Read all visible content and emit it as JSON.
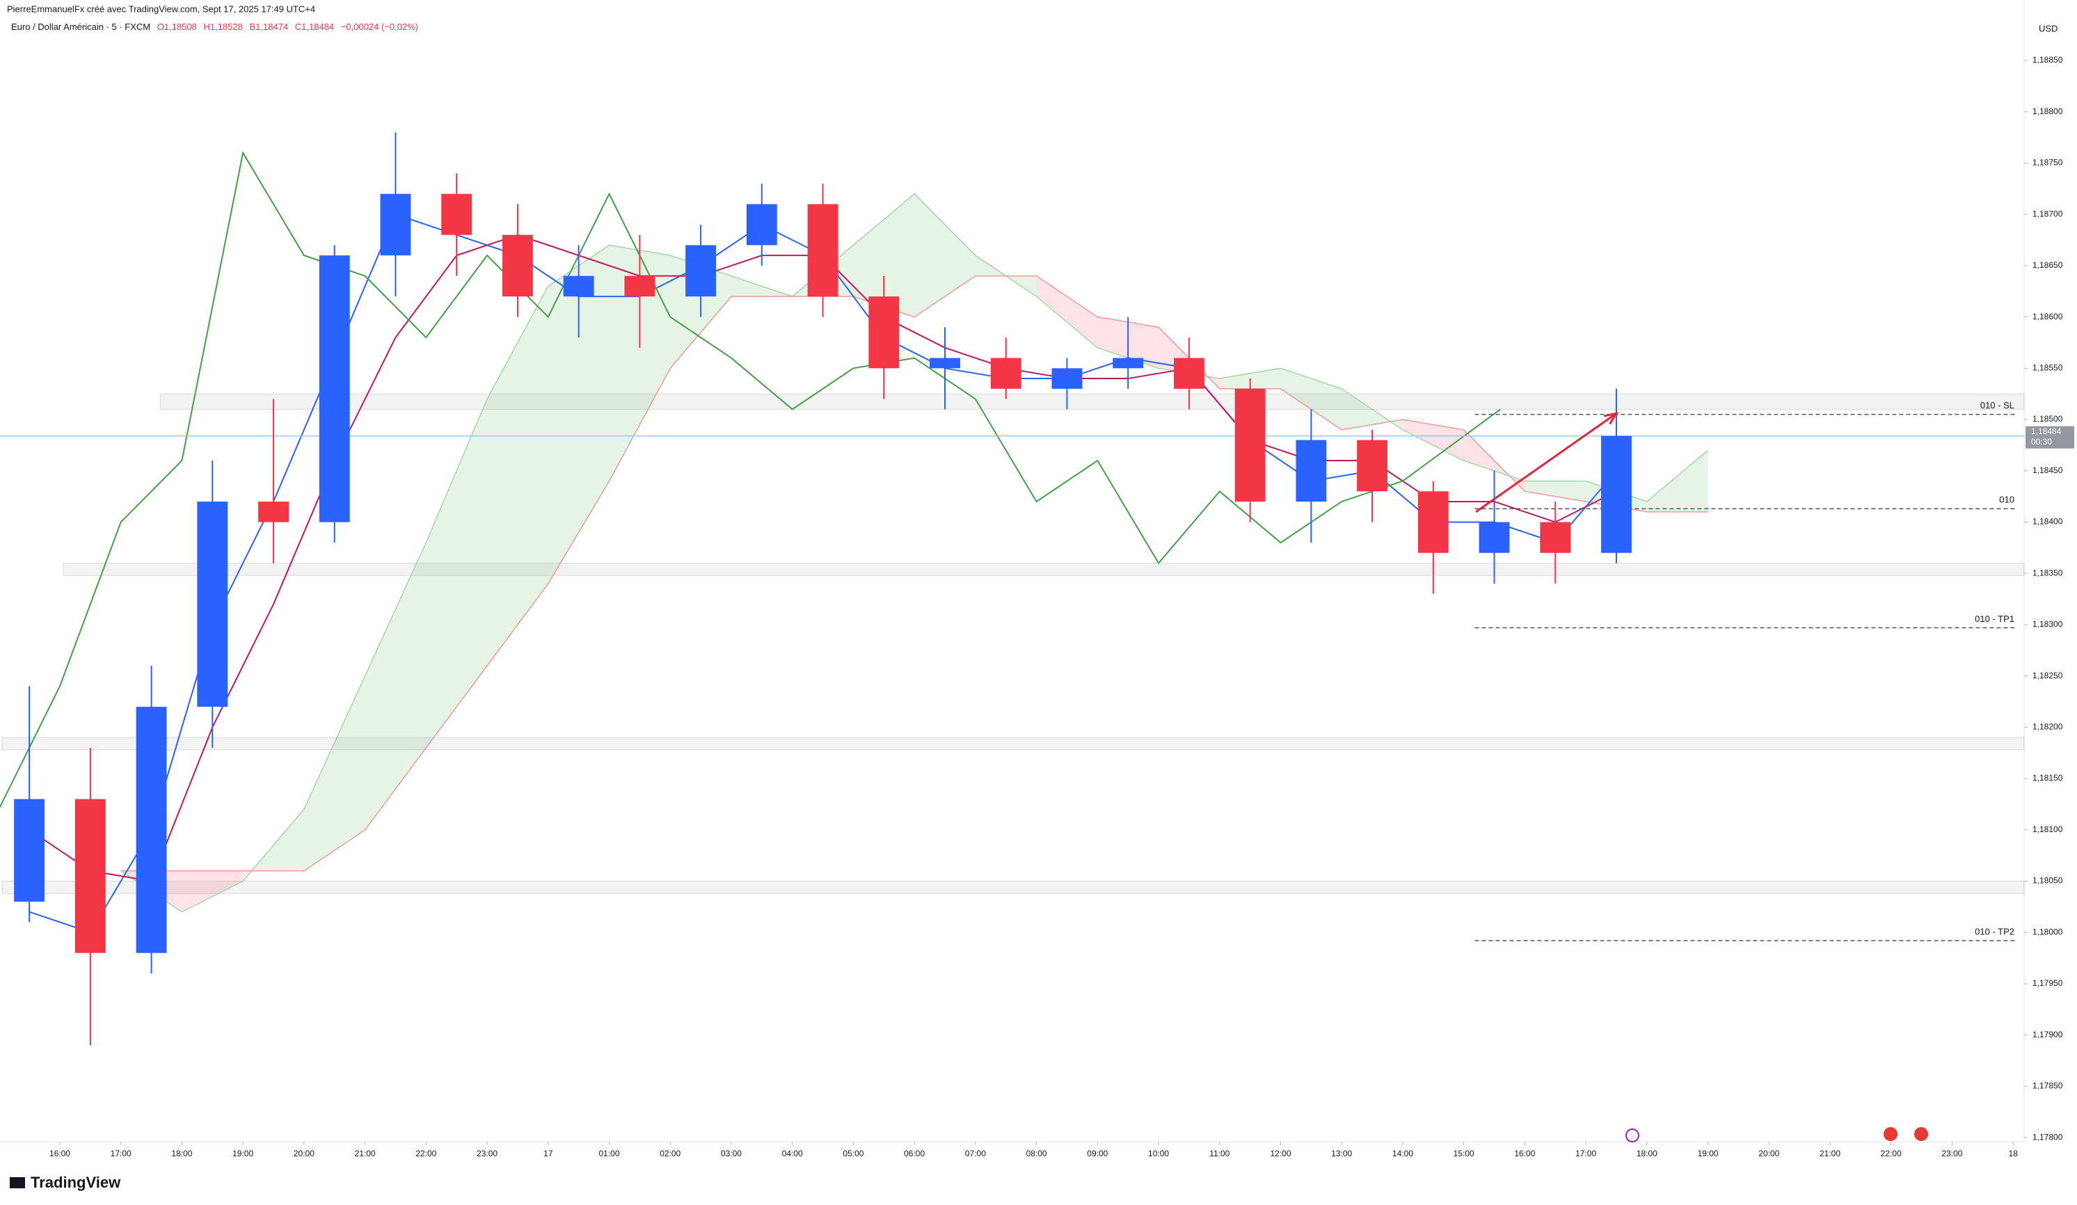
{
  "chart_data": {
    "type": "candlestick",
    "watermark": "PierreEmmanuelFx créé avec TradingView.com, Sept 17, 2025 17:49 UTC+4",
    "symbol": "Euro / Dollar Américain · 5 · FXCM",
    "ohlc_text": [
      "O1,18508",
      "H1,18528",
      "B1,18474",
      "C1,18484",
      "−0,00024 (−0,02%)"
    ],
    "currency": "USD",
    "brand": "TradingView",
    "up_color": "#2962ff",
    "down_color": "#f23645",
    "xlim": [
      15.02,
      48.18
    ],
    "ylim": [
      1.17796,
      1.18909
    ],
    "xticks": [
      {
        "value": 16,
        "label": "16:00"
      },
      {
        "value": 17,
        "label": "17:00"
      },
      {
        "value": 18,
        "label": "18:00"
      },
      {
        "value": 19,
        "label": "19:00"
      },
      {
        "value": 20,
        "label": "20:00"
      },
      {
        "value": 21,
        "label": "21:00"
      },
      {
        "value": 22,
        "label": "22:00"
      },
      {
        "value": 23,
        "label": "23:00"
      },
      {
        "value": 24,
        "label": "17"
      },
      {
        "value": 25,
        "label": "01:00"
      },
      {
        "value": 26,
        "label": "02:00"
      },
      {
        "value": 27,
        "label": "03:00"
      },
      {
        "value": 28,
        "label": "04:00"
      },
      {
        "value": 29,
        "label": "05:00"
      },
      {
        "value": 30,
        "label": "06:00"
      },
      {
        "value": 31,
        "label": "07:00"
      },
      {
        "value": 32,
        "label": "08:00"
      },
      {
        "value": 33,
        "label": "09:00"
      },
      {
        "value": 34,
        "label": "10:00"
      },
      {
        "value": 35,
        "label": "11:00"
      },
      {
        "value": 36,
        "label": "12:00"
      },
      {
        "value": 37,
        "label": "13:00"
      },
      {
        "value": 38,
        "label": "14:00"
      },
      {
        "value": 39,
        "label": "15:00"
      },
      {
        "value": 40,
        "label": "16:00"
      },
      {
        "value": 41,
        "label": "17:00"
      },
      {
        "value": 42,
        "label": "18:00"
      },
      {
        "value": 43,
        "label": "19:00"
      },
      {
        "value": 44,
        "label": "20:00"
      },
      {
        "value": 45,
        "label": "21:00"
      },
      {
        "value": 46,
        "label": "22:00"
      },
      {
        "value": 47,
        "label": "23:00"
      },
      {
        "value": 48,
        "label": "18"
      }
    ],
    "yticks": [
      {
        "value": 1.178,
        "label": "1,17800"
      },
      {
        "value": 1.1785,
        "label": "1,17850"
      },
      {
        "value": 1.179,
        "label": "1,17900"
      },
      {
        "value": 1.1795,
        "label": "1,17950"
      },
      {
        "value": 1.18,
        "label": "1,18000"
      },
      {
        "value": 1.1805,
        "label": "1,18050"
      },
      {
        "value": 1.181,
        "label": "1,18100"
      },
      {
        "value": 1.1815,
        "label": "1,18150"
      },
      {
        "value": 1.182,
        "label": "1,18200"
      },
      {
        "value": 1.1825,
        "label": "1,18250"
      },
      {
        "value": 1.183,
        "label": "1,18300"
      },
      {
        "value": 1.1835,
        "label": "1,18350"
      },
      {
        "value": 1.184,
        "label": "1,18400"
      },
      {
        "value": 1.1845,
        "label": "1,18450"
      },
      {
        "value": 1.185,
        "label": "1,18500"
      },
      {
        "value": 1.1855,
        "label": "1,18550"
      },
      {
        "value": 1.186,
        "label": "1,18600"
      },
      {
        "value": 1.1865,
        "label": "1,18650"
      },
      {
        "value": 1.187,
        "label": "1,18700"
      },
      {
        "value": 1.1875,
        "label": "1,18750"
      },
      {
        "value": 1.188,
        "label": "1,18800"
      },
      {
        "value": 1.1885,
        "label": "1,18850"
      }
    ],
    "candles": [
      {
        "x": 15.5,
        "o": 1.1803,
        "h": 1.1824,
        "l": 1.1801,
        "c": 1.1813
      },
      {
        "x": 16.5,
        "o": 1.1813,
        "h": 1.1818,
        "l": 1.1789,
        "c": 1.1798
      },
      {
        "x": 17.5,
        "o": 1.1798,
        "h": 1.1826,
        "l": 1.1796,
        "c": 1.1822
      },
      {
        "x": 18.5,
        "o": 1.1822,
        "h": 1.1846,
        "l": 1.1818,
        "c": 1.1842
      },
      {
        "x": 19.5,
        "o": 1.1842,
        "h": 1.1852,
        "l": 1.1836,
        "c": 1.184
      },
      {
        "x": 20.5,
        "o": 1.184,
        "h": 1.1867,
        "l": 1.1838,
        "c": 1.1866
      },
      {
        "x": 21.5,
        "o": 1.1866,
        "h": 1.1878,
        "l": 1.1862,
        "c": 1.1872
      },
      {
        "x": 22.5,
        "o": 1.1872,
        "h": 1.1874,
        "l": 1.1864,
        "c": 1.1868
      },
      {
        "x": 23.5,
        "o": 1.1868,
        "h": 1.1871,
        "l": 1.186,
        "c": 1.1862
      },
      {
        "x": 24.5,
        "o": 1.1862,
        "h": 1.1867,
        "l": 1.1858,
        "c": 1.1864
      },
      {
        "x": 25.5,
        "o": 1.1864,
        "h": 1.1868,
        "l": 1.1857,
        "c": 1.1862
      },
      {
        "x": 26.5,
        "o": 1.1862,
        "h": 1.1869,
        "l": 1.186,
        "c": 1.1867
      },
      {
        "x": 27.5,
        "o": 1.1867,
        "h": 1.1873,
        "l": 1.1865,
        "c": 1.1871
      },
      {
        "x": 28.5,
        "o": 1.1871,
        "h": 1.1873,
        "l": 1.186,
        "c": 1.1862
      },
      {
        "x": 29.5,
        "o": 1.1862,
        "h": 1.1864,
        "l": 1.1852,
        "c": 1.1855
      },
      {
        "x": 30.5,
        "o": 1.1855,
        "h": 1.1859,
        "l": 1.1851,
        "c": 1.1856
      },
      {
        "x": 31.5,
        "o": 1.1856,
        "h": 1.1858,
        "l": 1.1852,
        "c": 1.1853
      },
      {
        "x": 32.5,
        "o": 1.1853,
        "h": 1.1856,
        "l": 1.1851,
        "c": 1.1855
      },
      {
        "x": 33.5,
        "o": 1.1855,
        "h": 1.186,
        "l": 1.1853,
        "c": 1.1856
      },
      {
        "x": 34.5,
        "o": 1.1856,
        "h": 1.1858,
        "l": 1.1851,
        "c": 1.1853
      },
      {
        "x": 35.5,
        "o": 1.1853,
        "h": 1.1854,
        "l": 1.184,
        "c": 1.1842
      },
      {
        "x": 36.5,
        "o": 1.1842,
        "h": 1.1851,
        "l": 1.1838,
        "c": 1.1848
      },
      {
        "x": 37.5,
        "o": 1.1848,
        "h": 1.1849,
        "l": 1.184,
        "c": 1.1843
      },
      {
        "x": 38.5,
        "o": 1.1843,
        "h": 1.1844,
        "l": 1.1833,
        "c": 1.1837
      },
      {
        "x": 39.5,
        "o": 1.1837,
        "h": 1.1845,
        "l": 1.1834,
        "c": 1.184
      },
      {
        "x": 40.5,
        "o": 1.184,
        "h": 1.1842,
        "l": 1.1834,
        "c": 1.1837
      },
      {
        "x": 41.5,
        "o": 1.1837,
        "h": 1.1853,
        "l": 1.1836,
        "c": 1.18484
      }
    ],
    "lines": [
      {
        "color": "#2962ff",
        "x": [
          15.5,
          16.5,
          17.5,
          18.5,
          19.5,
          20.5,
          21.5,
          22.5,
          23.5,
          24.5,
          25.5,
          26.5,
          27.5,
          28.5,
          29.5,
          30.5,
          31.5,
          32.5,
          33.5,
          34.5,
          35.5,
          36.5,
          37.5,
          38.5,
          39.5,
          40.5,
          41.5
        ],
        "values": [
          1.1802,
          1.18,
          1.181,
          1.183,
          1.1842,
          1.1856,
          1.187,
          1.1868,
          1.1866,
          1.1862,
          1.1862,
          1.1865,
          1.1869,
          1.1866,
          1.1858,
          1.1855,
          1.1854,
          1.1854,
          1.1856,
          1.1855,
          1.1848,
          1.1844,
          1.1845,
          1.184,
          1.184,
          1.1838,
          1.1845
        ]
      },
      {
        "color": "#c2185b",
        "x": [
          15.5,
          16.5,
          17.5,
          18.5,
          19.5,
          20.5,
          21.5,
          22.5,
          23.5,
          24.5,
          25.5,
          26.5,
          27.5,
          28.5,
          29.5,
          30.5,
          31.5,
          32.5,
          33.5,
          34.5,
          35.5,
          36.5,
          37.5,
          38.5,
          39.5,
          40.5,
          41.5
        ],
        "values": [
          1.181,
          1.1806,
          1.1805,
          1.182,
          1.1832,
          1.1846,
          1.1858,
          1.1866,
          1.1868,
          1.1866,
          1.1864,
          1.1864,
          1.1866,
          1.1866,
          1.186,
          1.1857,
          1.1855,
          1.1854,
          1.1854,
          1.1855,
          1.1848,
          1.1846,
          1.1846,
          1.1842,
          1.1842,
          1.184,
          1.1843
        ]
      },
      {
        "color": "#43a047",
        "x": [
          15,
          16,
          17,
          18,
          19,
          20,
          21,
          22,
          23,
          24,
          25,
          26,
          27,
          28,
          29,
          30,
          31,
          32,
          33,
          34,
          35,
          36,
          37,
          38,
          39.6
        ],
        "values": [
          1.1812,
          1.1824,
          1.184,
          1.1846,
          1.1876,
          1.1866,
          1.1864,
          1.1858,
          1.1866,
          1.186,
          1.1872,
          1.186,
          1.1856,
          1.1851,
          1.1855,
          1.1856,
          1.1852,
          1.1842,
          1.1846,
          1.1836,
          1.1843,
          1.1838,
          1.1842,
          1.1844,
          1.1851
        ]
      }
    ],
    "cloud": {
      "up_color": "rgba(76,175,80,0.14)",
      "down_color": "rgba(242,54,69,0.14)",
      "line_a": "#a5d6a7",
      "line_b": "#ef9a9a",
      "x": [
        17,
        18,
        19,
        20,
        21,
        22,
        23,
        24,
        25,
        26,
        27,
        28,
        29,
        30,
        31,
        32,
        33,
        34,
        35,
        36,
        37,
        38,
        39,
        40,
        41,
        42,
        43
      ],
      "span_a": [
        1.1806,
        1.1802,
        1.1805,
        1.1812,
        1.1825,
        1.1838,
        1.1852,
        1.1863,
        1.1867,
        1.1866,
        1.1864,
        1.1862,
        1.1867,
        1.1872,
        1.1866,
        1.1862,
        1.1857,
        1.1855,
        1.1854,
        1.1855,
        1.1853,
        1.1849,
        1.1846,
        1.1844,
        1.1844,
        1.1842,
        1.1847
      ],
      "span_b": [
        1.1806,
        1.1806,
        1.1806,
        1.1806,
        1.181,
        1.1818,
        1.1826,
        1.1834,
        1.1844,
        1.1855,
        1.1862,
        1.1862,
        1.1862,
        1.186,
        1.1864,
        1.1864,
        1.186,
        1.1859,
        1.1853,
        1.1853,
        1.1849,
        1.185,
        1.1849,
        1.1843,
        1.1842,
        1.1841,
        1.1841
      ]
    },
    "zones": [
      {
        "from": 17.65,
        "range": [
          1.1851,
          1.18525
        ]
      },
      {
        "from": 16.06,
        "range": [
          1.18348,
          1.1836
        ]
      },
      {
        "from": 15.06,
        "range": [
          1.18178,
          1.1819
        ]
      },
      {
        "from": 15.06,
        "range": [
          1.18038,
          1.1805
        ]
      }
    ],
    "levels": [
      {
        "label": "010 - SL",
        "value": 1.18505,
        "from": 39.18
      },
      {
        "label": "010",
        "value": 1.18413,
        "from": 39.18
      },
      {
        "label": "010 - TP1",
        "value": 1.18297,
        "from": 39.18
      },
      {
        "label": "010 - TP2",
        "value": 1.17992,
        "from": 39.18
      }
    ],
    "arrow": {
      "x": [
        39.2,
        41.5
      ],
      "y": [
        1.1841,
        1.18506
      ],
      "color": "#e0263b"
    },
    "last_price": {
      "value": 1.18484,
      "label": "1,18484",
      "countdown": "00:30"
    }
  }
}
